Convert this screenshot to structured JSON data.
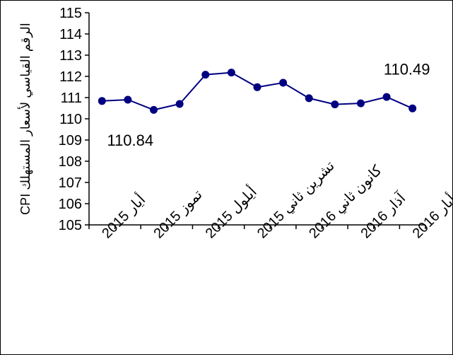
{
  "chart_data": {
    "type": "line",
    "ylabel": "CPI الرقم القياسي لأسعار المستهلك",
    "ylim": [
      105,
      115
    ],
    "yticks": [
      105,
      106,
      107,
      108,
      109,
      110,
      111,
      112,
      113,
      114,
      115
    ],
    "x_tick_labels": [
      "أيار 2015",
      "تموز 2015",
      "أيلول 2015",
      "تشرين ثاني 2015",
      "كانون ثاني 2016",
      "آذار 2016",
      "أيار 2016"
    ],
    "values": [
      110.84,
      110.9,
      110.42,
      110.7,
      112.08,
      112.18,
      111.49,
      111.7,
      110.97,
      110.68,
      110.73,
      111.03,
      110.49
    ],
    "data_labels": [
      {
        "index": 0,
        "text": "110.84"
      },
      {
        "index": 12,
        "text": "110.49"
      }
    ],
    "grid": false,
    "legend": "none",
    "marker_color": "#000080",
    "line_color": "#000080"
  }
}
